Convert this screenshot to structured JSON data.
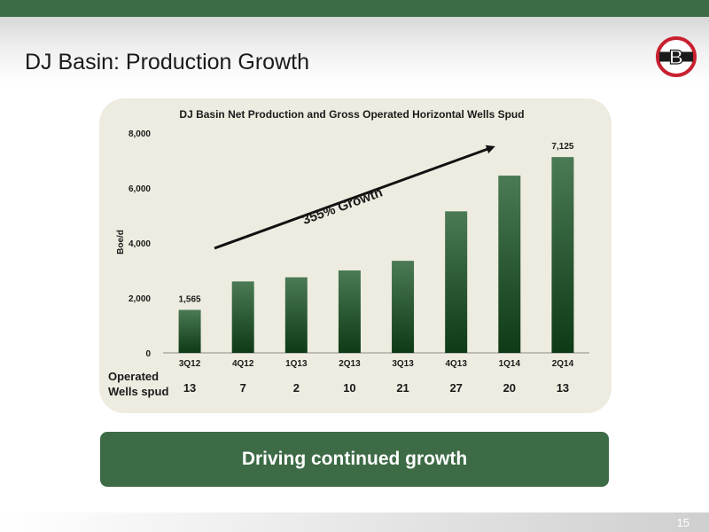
{
  "slide": {
    "title": "DJ Basin: Production Growth",
    "banner_text": "Driving continued growth",
    "page_number": "15",
    "operated_label_line1": "Operated",
    "operated_label_line2": "Wells spud"
  },
  "colors": {
    "accent": "#3d6b46",
    "bar_top": "#4b7a55",
    "bar_bottom": "#0e3a16",
    "panel_bg": "#eeece0",
    "logo_red": "#c8202f"
  },
  "logo": {
    "icon": "b-logo-icon",
    "letter": "B"
  },
  "chart_data": {
    "type": "bar",
    "title": "DJ Basin Net Production and Gross Operated Horizontal Wells Spud",
    "ylabel": "Boe/d",
    "ylim": [
      0,
      8000
    ],
    "yticks": [
      0,
      2000,
      4000,
      6000,
      8000
    ],
    "ytick_labels": [
      "0",
      "2,000",
      "4,000",
      "6,000",
      "8,000"
    ],
    "grid": false,
    "categories": [
      "3Q12",
      "4Q12",
      "1Q13",
      "2Q13",
      "3Q13",
      "4Q13",
      "1Q14",
      "2Q14"
    ],
    "values": [
      1565,
      2600,
      2750,
      3000,
      3350,
      5150,
      6450,
      7125
    ],
    "data_labels": [
      "1,565",
      "",
      "",
      "",
      "",
      "",
      "",
      "7,125"
    ],
    "wells_spud": [
      "13",
      "7",
      "2",
      "10",
      "21",
      "27",
      "20",
      "13"
    ],
    "annotation": "355% Growth"
  }
}
